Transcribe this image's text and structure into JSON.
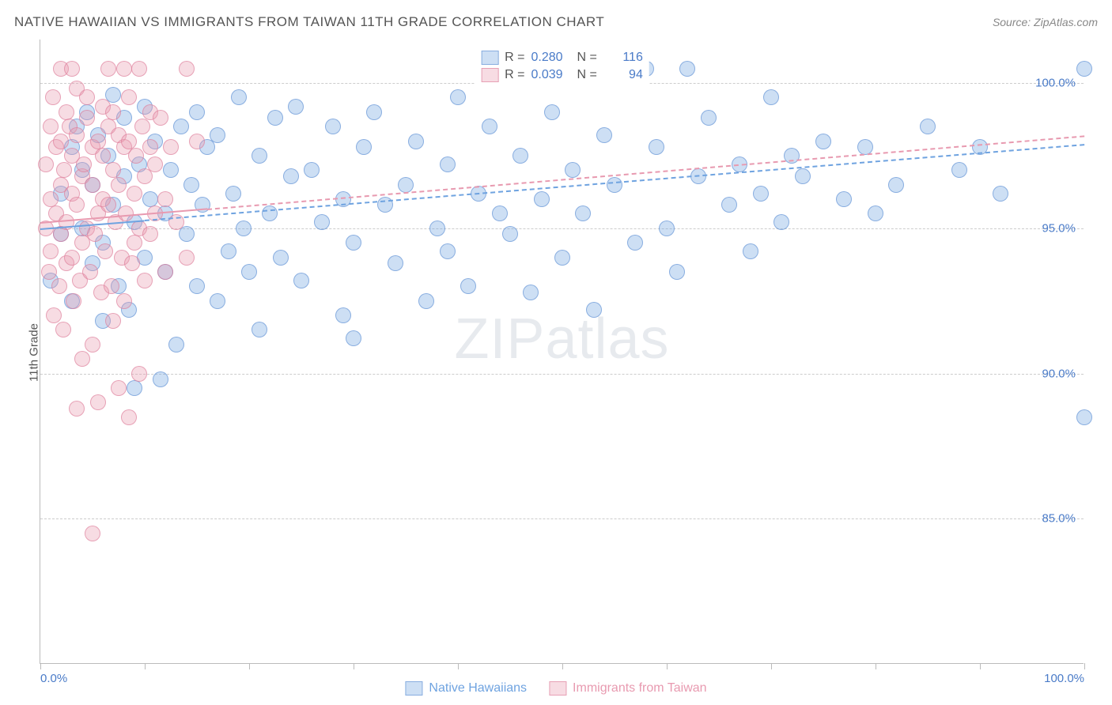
{
  "title": "NATIVE HAWAIIAN VS IMMIGRANTS FROM TAIWAN 11TH GRADE CORRELATION CHART",
  "source_label": "Source:",
  "source_value": "ZipAtlas.com",
  "ylabel": "11th Grade",
  "watermark": "ZIPatlas",
  "chart": {
    "type": "scatter",
    "background_color": "#ffffff",
    "grid_color": "#cccccc",
    "axis_color": "#bbbbbb",
    "tick_label_color": "#4a7bc8",
    "title_color": "#555555",
    "title_fontsize": 17,
    "label_fontsize": 15,
    "xlim": [
      0,
      100
    ],
    "ylim": [
      80,
      101.5
    ],
    "yticks": [
      85,
      90,
      95,
      100
    ],
    "ytick_labels": [
      "85.0%",
      "90.0%",
      "95.0%",
      "100.0%"
    ],
    "xticks": [
      0,
      20,
      40,
      60,
      80,
      100
    ],
    "xtick_minor": [
      10,
      30,
      50,
      70,
      90
    ],
    "xtick_labels": {
      "0": "0.0%",
      "100": "100.0%"
    },
    "marker_radius": 10,
    "marker_opacity": 0.45,
    "series": [
      {
        "name": "Native Hawaiians",
        "color": "#6fa3e0",
        "fill": "rgba(111,163,224,0.35)",
        "stroke": "rgba(90,140,210,0.6)",
        "R": "0.280",
        "N": "116",
        "trend": {
          "x1": 0,
          "y1": 95.0,
          "x2": 100,
          "y2": 97.9,
          "width": 2.5,
          "style": "solid",
          "dash_after_x": 10
        },
        "points": [
          [
            1,
            93.2
          ],
          [
            2,
            94.8
          ],
          [
            2,
            96.2
          ],
          [
            3,
            92.5
          ],
          [
            3,
            97.8
          ],
          [
            3.5,
            98.5
          ],
          [
            4,
            95.0
          ],
          [
            4,
            97.0
          ],
          [
            4.5,
            99.0
          ],
          [
            5,
            93.8
          ],
          [
            5,
            96.5
          ],
          [
            5.5,
            98.2
          ],
          [
            6,
            91.8
          ],
          [
            6,
            94.5
          ],
          [
            6.5,
            97.5
          ],
          [
            7,
            99.6
          ],
          [
            7,
            95.8
          ],
          [
            7.5,
            93.0
          ],
          [
            8,
            96.8
          ],
          [
            8,
            98.8
          ],
          [
            8.5,
            92.2
          ],
          [
            9,
            95.2
          ],
          [
            9.5,
            97.2
          ],
          [
            10,
            94.0
          ],
          [
            10,
            99.2
          ],
          [
            10.5,
            96.0
          ],
          [
            11,
            98.0
          ],
          [
            11.5,
            89.8
          ],
          [
            12,
            93.5
          ],
          [
            12,
            95.5
          ],
          [
            12.5,
            97.0
          ],
          [
            13,
            91.0
          ],
          [
            13.5,
            98.5
          ],
          [
            14,
            94.8
          ],
          [
            14.5,
            96.5
          ],
          [
            15,
            93.0
          ],
          [
            15,
            99.0
          ],
          [
            15.5,
            95.8
          ],
          [
            16,
            97.8
          ],
          [
            17,
            92.5
          ],
          [
            17,
            98.2
          ],
          [
            18,
            94.2
          ],
          [
            18.5,
            96.2
          ],
          [
            19,
            99.5
          ],
          [
            19.5,
            95.0
          ],
          [
            20,
            93.5
          ],
          [
            21,
            97.5
          ],
          [
            21,
            91.5
          ],
          [
            22,
            95.5
          ],
          [
            22.5,
            98.8
          ],
          [
            23,
            94.0
          ],
          [
            24,
            96.8
          ],
          [
            24.5,
            99.2
          ],
          [
            25,
            93.2
          ],
          [
            26,
            97.0
          ],
          [
            27,
            95.2
          ],
          [
            28,
            98.5
          ],
          [
            29,
            92.0
          ],
          [
            29,
            96.0
          ],
          [
            30,
            91.2
          ],
          [
            30,
            94.5
          ],
          [
            31,
            97.8
          ],
          [
            32,
            99.0
          ],
          [
            33,
            95.8
          ],
          [
            34,
            93.8
          ],
          [
            35,
            96.5
          ],
          [
            36,
            98.0
          ],
          [
            37,
            92.5
          ],
          [
            38,
            95.0
          ],
          [
            39,
            97.2
          ],
          [
            39,
            94.2
          ],
          [
            40,
            99.5
          ],
          [
            41,
            93.0
          ],
          [
            42,
            96.2
          ],
          [
            43,
            98.5
          ],
          [
            44,
            95.5
          ],
          [
            45,
            94.8
          ],
          [
            46,
            97.5
          ],
          [
            47,
            92.8
          ],
          [
            48,
            96.0
          ],
          [
            49,
            99.0
          ],
          [
            50,
            94.0
          ],
          [
            51,
            97.0
          ],
          [
            52,
            95.5
          ],
          [
            53,
            92.2
          ],
          [
            54,
            98.2
          ],
          [
            55,
            96.5
          ],
          [
            56,
            100.5
          ],
          [
            57,
            94.5
          ],
          [
            58,
            100.5
          ],
          [
            59,
            97.8
          ],
          [
            60,
            95.0
          ],
          [
            61,
            93.5
          ],
          [
            62,
            100.5
          ],
          [
            63,
            96.8
          ],
          [
            64,
            98.8
          ],
          [
            66,
            95.8
          ],
          [
            67,
            97.2
          ],
          [
            68,
            94.2
          ],
          [
            69,
            96.2
          ],
          [
            70,
            99.5
          ],
          [
            71,
            95.2
          ],
          [
            72,
            97.5
          ],
          [
            73,
            96.8
          ],
          [
            75,
            98.0
          ],
          [
            77,
            96.0
          ],
          [
            79,
            97.8
          ],
          [
            80,
            95.5
          ],
          [
            82,
            96.5
          ],
          [
            85,
            98.5
          ],
          [
            88,
            97.0
          ],
          [
            90,
            97.8
          ],
          [
            92,
            96.2
          ],
          [
            100,
            100.5
          ],
          [
            100,
            88.5
          ],
          [
            9,
            89.5
          ]
        ]
      },
      {
        "name": "Immigrants from Taiwan",
        "color": "#e89ab0",
        "fill": "rgba(232,154,176,0.35)",
        "stroke": "rgba(220,120,150,0.6)",
        "R": "0.039",
        "N": "94",
        "trend": {
          "x1": 0,
          "y1": 95.2,
          "x2": 100,
          "y2": 98.2,
          "width": 2,
          "style": "solid",
          "dash_after_x": 16
        },
        "points": [
          [
            0.5,
            95.0
          ],
          [
            0.5,
            97.2
          ],
          [
            0.8,
            93.5
          ],
          [
            1,
            98.5
          ],
          [
            1,
            94.2
          ],
          [
            1,
            96.0
          ],
          [
            1.2,
            99.5
          ],
          [
            1.3,
            92.0
          ],
          [
            1.5,
            97.8
          ],
          [
            1.5,
            95.5
          ],
          [
            1.8,
            93.0
          ],
          [
            2,
            98.0
          ],
          [
            2,
            94.8
          ],
          [
            2,
            96.5
          ],
          [
            2,
            100.5
          ],
          [
            2.2,
            91.5
          ],
          [
            2.3,
            97.0
          ],
          [
            2.5,
            99.0
          ],
          [
            2.5,
            95.2
          ],
          [
            2.5,
            93.8
          ],
          [
            2.8,
            98.5
          ],
          [
            3,
            96.2
          ],
          [
            3,
            94.0
          ],
          [
            3,
            97.5
          ],
          [
            3,
            100.5
          ],
          [
            3.2,
            92.5
          ],
          [
            3.5,
            95.8
          ],
          [
            3.5,
            98.2
          ],
          [
            3.5,
            99.8
          ],
          [
            3.8,
            93.2
          ],
          [
            4,
            96.8
          ],
          [
            4,
            94.5
          ],
          [
            4,
            90.5
          ],
          [
            4.2,
            97.2
          ],
          [
            4.5,
            95.0
          ],
          [
            4.5,
            98.8
          ],
          [
            4.5,
            99.5
          ],
          [
            4.8,
            93.5
          ],
          [
            5,
            96.5
          ],
          [
            5,
            91.0
          ],
          [
            5,
            97.8
          ],
          [
            5.2,
            94.8
          ],
          [
            5.5,
            98.0
          ],
          [
            5.5,
            95.5
          ],
          [
            5.5,
            89.0
          ],
          [
            5.8,
            92.8
          ],
          [
            6,
            99.2
          ],
          [
            6,
            96.0
          ],
          [
            6,
            97.5
          ],
          [
            6.2,
            94.2
          ],
          [
            6.5,
            98.5
          ],
          [
            6.5,
            100.5
          ],
          [
            6.5,
            95.8
          ],
          [
            6.8,
            93.0
          ],
          [
            7,
            97.0
          ],
          [
            7,
            99.0
          ],
          [
            7,
            91.8
          ],
          [
            7.2,
            95.2
          ],
          [
            7.5,
            98.2
          ],
          [
            7.5,
            96.5
          ],
          [
            7.5,
            89.5
          ],
          [
            7.8,
            94.0
          ],
          [
            8,
            100.5
          ],
          [
            8,
            97.8
          ],
          [
            8,
            92.5
          ],
          [
            8.2,
            95.5
          ],
          [
            8.5,
            99.5
          ],
          [
            8.5,
            98.0
          ],
          [
            8.8,
            93.8
          ],
          [
            9,
            96.2
          ],
          [
            9,
            94.5
          ],
          [
            9.2,
            97.5
          ],
          [
            9.5,
            100.5
          ],
          [
            9.5,
            95.0
          ],
          [
            9.5,
            90.0
          ],
          [
            9.8,
            98.5
          ],
          [
            10,
            93.2
          ],
          [
            10,
            96.8
          ],
          [
            10.5,
            99.0
          ],
          [
            10.5,
            94.8
          ],
          [
            11,
            97.2
          ],
          [
            11,
            95.5
          ],
          [
            11.5,
            98.8
          ],
          [
            12,
            96.0
          ],
          [
            12,
            93.5
          ],
          [
            12.5,
            97.8
          ],
          [
            13,
            95.2
          ],
          [
            14,
            100.5
          ],
          [
            14,
            94.0
          ],
          [
            15,
            98.0
          ],
          [
            5,
            84.5
          ],
          [
            3.5,
            88.8
          ],
          [
            8.5,
            88.5
          ],
          [
            10.5,
            97.8
          ]
        ]
      }
    ]
  },
  "legend_bottom": [
    {
      "label": "Native Hawaiians",
      "color_key": 0
    },
    {
      "label": "Immigrants from Taiwan",
      "color_key": 1
    }
  ]
}
